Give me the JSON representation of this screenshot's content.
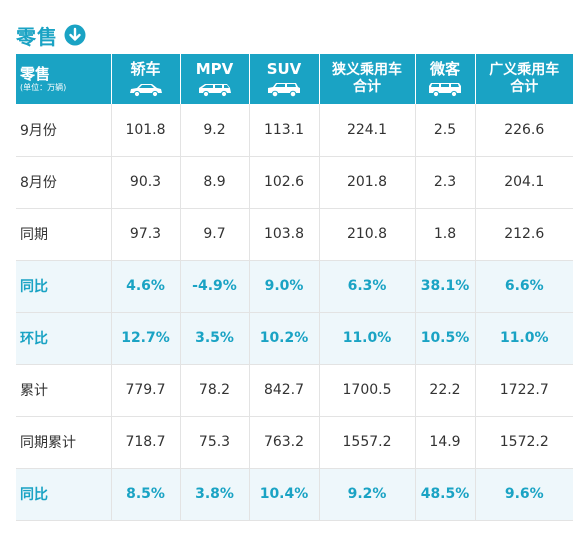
{
  "title": "零售",
  "colors": {
    "accent": "#1aa3c4",
    "highlight_row_bg": "#eef7fb"
  },
  "icons": {
    "title": "down-arrow-circle-icon",
    "column": "car-icon"
  },
  "header": {
    "col0_main": "零售",
    "col0_sub": "(单位：万辆)",
    "col1": "轿车",
    "col2": "MPV",
    "col3": "SUV",
    "col4_line1": "狭义乘用车",
    "col4_line2": "合计",
    "col5": "微客",
    "col6_line1": "广义乘用车",
    "col6_line2": "合计"
  },
  "rows": [
    {
      "label": "9月份",
      "v": [
        "101.8",
        "9.2",
        "113.1",
        "224.1",
        "2.5",
        "226.6"
      ]
    },
    {
      "label": "8月份",
      "v": [
        "90.3",
        "8.9",
        "102.6",
        "201.8",
        "2.3",
        "204.1"
      ]
    },
    {
      "label": "同期",
      "v": [
        "97.3",
        "9.7",
        "103.8",
        "210.8",
        "1.8",
        "212.6"
      ]
    },
    {
      "label": "同比",
      "v": [
        "4.6%",
        "-4.9%",
        "9.0%",
        "6.3%",
        "38.1%",
        "6.6%"
      ]
    },
    {
      "label": "环比",
      "v": [
        "12.7%",
        "3.5%",
        "10.2%",
        "11.0%",
        "10.5%",
        "11.0%"
      ]
    },
    {
      "label": "累计",
      "v": [
        "779.7",
        "78.2",
        "842.7",
        "1700.5",
        "22.2",
        "1722.7"
      ]
    },
    {
      "label": "同期累计",
      "v": [
        "718.7",
        "75.3",
        "763.2",
        "1557.2",
        "14.9",
        "1572.2"
      ]
    },
    {
      "label": "同比",
      "v": [
        "8.5%",
        "3.8%",
        "10.4%",
        "9.2%",
        "48.5%",
        "9.6%"
      ]
    }
  ]
}
